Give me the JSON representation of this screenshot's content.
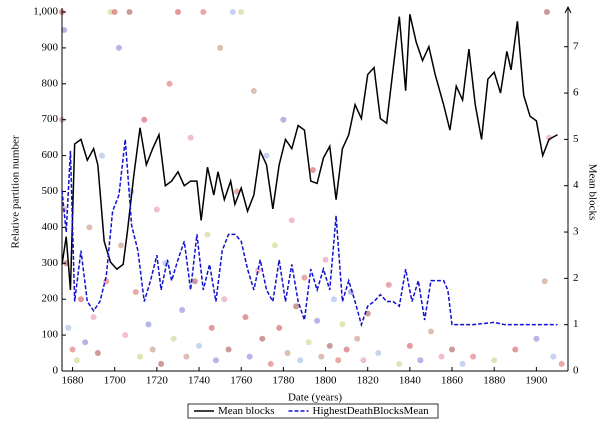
{
  "chart_data": {
    "type": "line",
    "xlabel": "Date (years)",
    "ylabel": "Relative partition number",
    "y2label": "Mean blocks",
    "xlim": [
      1675,
      1915
    ],
    "xticks": [
      1680,
      1700,
      1720,
      1740,
      1760,
      1780,
      1800,
      1820,
      1840,
      1860,
      1880,
      1900
    ],
    "ylim": [
      0,
      1000
    ],
    "yticks": [
      0,
      100,
      200,
      300,
      400,
      500,
      600,
      700,
      800,
      900,
      {
        "value": 1000,
        "label": "1,000"
      }
    ],
    "y2lim": [
      0,
      7.75
    ],
    "y2ticks": [
      0,
      1,
      2,
      3,
      4,
      5,
      6,
      7
    ],
    "legend": "bottom",
    "scatter": {
      "colors": [
        "#c0202a",
        "#5a5ad0",
        "#b07050",
        "#e07090",
        "#902020",
        "#80a0e0",
        "#d04040",
        "#c0c060"
      ],
      "x": [
        1675,
        1676,
        1675,
        1676,
        1677,
        1678,
        1680,
        1682,
        1684,
        1686,
        1688,
        1690,
        1692,
        1694,
        1696,
        1698,
        1700,
        1702,
        1703,
        1705,
        1707,
        1708,
        1710,
        1712,
        1714,
        1716,
        1718,
        1720,
        1722,
        1724,
        1726,
        1728,
        1730,
        1732,
        1734,
        1736,
        1738,
        1740,
        1742,
        1744,
        1746,
        1748,
        1750,
        1752,
        1754,
        1756,
        1758,
        1760,
        1762,
        1764,
        1766,
        1768,
        1770,
        1772,
        1774,
        1776,
        1778,
        1780,
        1782,
        1784,
        1786,
        1788,
        1790,
        1792,
        1794,
        1796,
        1798,
        1800,
        1802,
        1804,
        1806,
        1808,
        1810,
        1812,
        1815,
        1818,
        1820,
        1825,
        1830,
        1835,
        1840,
        1845,
        1850,
        1855,
        1860,
        1865,
        1870,
        1880,
        1890,
        1900,
        1904,
        1906,
        1905,
        1908,
        1912
      ],
      "values": [
        1000,
        950,
        700,
        450,
        300,
        120,
        60,
        30,
        200,
        80,
        400,
        150,
        50,
        600,
        250,
        1000,
        1000,
        900,
        350,
        100,
        1000,
        500,
        220,
        40,
        700,
        130,
        60,
        450,
        20,
        300,
        800,
        90,
        1000,
        170,
        40,
        650,
        250,
        70,
        1000,
        380,
        120,
        30,
        900,
        200,
        60,
        1000,
        500,
        1000,
        150,
        40,
        780,
        280,
        90,
        600,
        20,
        350,
        120,
        700,
        50,
        420,
        180,
        30,
        260,
        80,
        560,
        140,
        40,
        310,
        70,
        200,
        30,
        130,
        60,
        220,
        90,
        30,
        160,
        50,
        240,
        20,
        70,
        30,
        110,
        40,
        60,
        20,
        40,
        30,
        60,
        90,
        250,
        650,
        1000,
        40,
        20
      ]
    },
    "series": [
      {
        "name": "Mean blocks",
        "color": "#000000",
        "dash": false,
        "axis": "y2",
        "x": [
          1675,
          1677,
          1679,
          1681,
          1684,
          1687,
          1690,
          1692,
          1695,
          1698,
          1701,
          1704,
          1706,
          1709,
          1712,
          1715,
          1718,
          1721,
          1724,
          1727,
          1730,
          1733,
          1736,
          1739,
          1741,
          1744,
          1747,
          1749,
          1752,
          1755,
          1757,
          1760,
          1763,
          1766,
          1769,
          1772,
          1775,
          1778,
          1781,
          1784,
          1787,
          1790,
          1793,
          1796,
          1799,
          1802,
          1805,
          1808,
          1811,
          1814,
          1817,
          1820,
          1823,
          1826,
          1829,
          1832,
          1835,
          1838,
          1840,
          1843,
          1846,
          1849,
          1852,
          1856,
          1859,
          1862,
          1865,
          1868,
          1871,
          1874,
          1877,
          1880,
          1883,
          1886,
          1888,
          1891,
          1894,
          1897,
          1900,
          1903,
          1906,
          1910
        ],
        "values": [
          2.3,
          2.9,
          1.75,
          4.9,
          5.0,
          4.55,
          4.8,
          4.45,
          2.8,
          2.35,
          2.2,
          2.3,
          3.0,
          4.2,
          5.25,
          4.45,
          4.8,
          5.1,
          4.0,
          4.1,
          4.3,
          4.0,
          4.1,
          4.1,
          3.25,
          4.4,
          3.8,
          4.3,
          3.7,
          4.1,
          3.6,
          3.95,
          3.45,
          3.8,
          4.75,
          4.45,
          3.5,
          4.45,
          5.0,
          4.8,
          5.3,
          5.2,
          4.1,
          4.05,
          4.6,
          4.85,
          3.7,
          4.8,
          5.1,
          5.75,
          5.45,
          6.4,
          6.55,
          5.45,
          5.35,
          6.5,
          7.65,
          6.05,
          7.7,
          7.1,
          6.7,
          7.0,
          6.4,
          5.75,
          5.2,
          6.15,
          5.85,
          6.95,
          5.75,
          5.0,
          6.3,
          6.45,
          6.0,
          6.9,
          6.5,
          7.55,
          5.95,
          5.5,
          5.4,
          4.65,
          5.0,
          5.1
        ]
      },
      {
        "name": "HighestDeathBlocksMean",
        "color": "#1010d0",
        "dash": true,
        "axis": "y2",
        "x": [
          1675,
          1677,
          1679,
          1681,
          1684,
          1687,
          1690,
          1693,
          1696,
          1699,
          1702,
          1705,
          1708,
          1711,
          1714,
          1717,
          1720,
          1722,
          1725,
          1727,
          1730,
          1733,
          1736,
          1739,
          1742,
          1745,
          1748,
          1751,
          1754,
          1757,
          1760,
          1763,
          1766,
          1769,
          1772,
          1775,
          1778,
          1781,
          1784,
          1787,
          1790,
          1793,
          1796,
          1799,
          1802,
          1805,
          1808,
          1811,
          1814,
          1817,
          1820,
          1823,
          1826,
          1829,
          1832,
          1835,
          1838,
          1841,
          1844,
          1847,
          1850,
          1853,
          1856,
          1858,
          1860,
          1870,
          1880,
          1885,
          1890,
          1900,
          1905,
          1910
        ],
        "values": [
          3.9,
          3.0,
          4.75,
          1.5,
          2.6,
          1.5,
          1.3,
          1.5,
          2.05,
          3.45,
          3.8,
          5.0,
          3.15,
          2.6,
          1.5,
          1.95,
          2.5,
          1.75,
          2.4,
          1.95,
          2.4,
          2.8,
          1.75,
          2.95,
          1.75,
          2.3,
          1.5,
          2.6,
          2.95,
          2.95,
          2.8,
          2.2,
          1.75,
          2.4,
          1.75,
          1.5,
          2.4,
          1.5,
          2.3,
          1.5,
          1.1,
          2.2,
          1.75,
          2.2,
          1.75,
          3.35,
          1.5,
          1.95,
          1.5,
          1.0,
          1.4,
          1.5,
          1.65,
          1.5,
          1.5,
          1.4,
          2.2,
          1.5,
          1.95,
          1.1,
          1.95,
          1.95,
          1.95,
          1.75,
          1.0,
          1.0,
          1.05,
          1.0,
          1.0,
          1.0,
          1.0,
          1.0
        ]
      }
    ]
  }
}
